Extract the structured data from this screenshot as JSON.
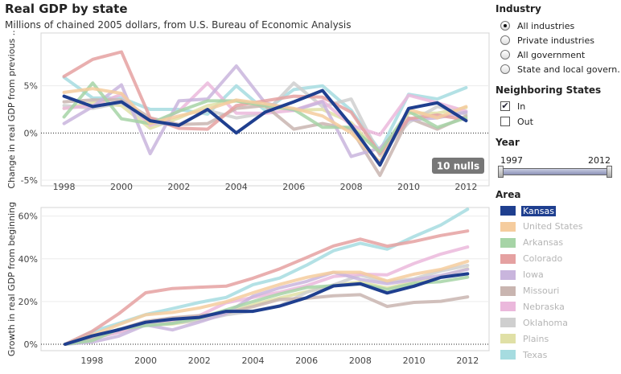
{
  "header": {
    "title": "Real GDP by state",
    "subtitle": "Millions of chained 2005 dollars, from U.S. Bureau of Economic Analysis"
  },
  "sidebar": {
    "industry": {
      "title": "Industry",
      "options": [
        "All industries",
        "Private industries",
        "All government",
        "State and local govern…"
      ],
      "selected": "All industries"
    },
    "neighbors": {
      "title": "Neighboring States",
      "options": [
        {
          "label": "In",
          "checked": true,
          "mark": "✔"
        },
        {
          "label": "Out",
          "checked": false,
          "mark": ""
        }
      ]
    },
    "year": {
      "title": "Year",
      "min_label": "1997",
      "max_label": "2012",
      "range": [
        1997,
        2012
      ]
    },
    "area": {
      "title": "Area",
      "selected": "Kansas",
      "items": [
        {
          "label": "Kansas",
          "color": "#1f3f8f"
        },
        {
          "label": "United States",
          "color": "#f5cc9e"
        },
        {
          "label": "Arkansas",
          "color": "#a6d4a6"
        },
        {
          "label": "Colorado",
          "color": "#e5a1a1"
        },
        {
          "label": "Iowa",
          "color": "#c9b5dd"
        },
        {
          "label": "Missouri",
          "color": "#c9b5b0"
        },
        {
          "label": "Nebraska",
          "color": "#ebb8dc"
        },
        {
          "label": "Oklahoma",
          "color": "#cfcfcf"
        },
        {
          "label": "Plains",
          "color": "#e0e0a6"
        },
        {
          "label": "Texas",
          "color": "#a6dce0"
        }
      ]
    }
  },
  "chart_data": [
    {
      "type": "line",
      "ylabel": "Change in real GDP from previous ..",
      "x": [
        1998,
        1999,
        2000,
        2001,
        2002,
        2003,
        2004,
        2005,
        2006,
        2007,
        2008,
        2009,
        2010,
        2011,
        2012
      ],
      "xticks": [
        "1998",
        "2000",
        "2002",
        "2004",
        "2006",
        "2008",
        "2010",
        "2012"
      ],
      "yticks": [
        {
          "v": 5,
          "label": "5%"
        },
        {
          "v": 0,
          "label": "0%"
        },
        {
          "v": -5,
          "label": "-5%"
        }
      ],
      "xlim": [
        1997.2,
        2012.8
      ],
      "ylim": [
        -5.6,
        10.6
      ],
      "annotation": "10 nulls",
      "series": [
        {
          "name": "Texas",
          "values": [
            5.9,
            3.7,
            3.7,
            2.5,
            2.5,
            2.0,
            5.0,
            2.4,
            4.6,
            5.0,
            2.4,
            -1.9,
            4.1,
            3.6,
            4.8
          ]
        },
        {
          "name": "Plains",
          "values": [
            2.6,
            3.2,
            2.9,
            0.5,
            1.6,
            2.9,
            3.4,
            2.8,
            2.4,
            2.5,
            1.1,
            -2.2,
            2.1,
            2.1,
            2.7
          ]
        },
        {
          "name": "Oklahoma",
          "values": [
            2.9,
            2.6,
            3.2,
            1.0,
            0.9,
            2.4,
            1.6,
            2.1,
            5.3,
            2.8,
            3.6,
            -2.4,
            1.1,
            2.8,
            2.0
          ]
        },
        {
          "name": "Nebraska",
          "values": [
            2.6,
            2.9,
            4.1,
            0.8,
            2.3,
            5.3,
            2.1,
            2.1,
            2.4,
            3.4,
            0.8,
            -0.2,
            4.0,
            3.2,
            2.3
          ]
        },
        {
          "name": "Missouri",
          "values": [
            3.3,
            3.5,
            3.5,
            1.6,
            0.9,
            1.0,
            2.6,
            2.9,
            0.4,
            1.0,
            0.4,
            -4.5,
            1.6,
            0.4,
            1.8
          ]
        },
        {
          "name": "Iowa",
          "values": [
            1.0,
            2.8,
            5.1,
            -2.2,
            3.4,
            3.6,
            7.1,
            3.2,
            2.4,
            3.3,
            -2.5,
            -1.6,
            1.4,
            1.6,
            2.2
          ]
        },
        {
          "name": "Colorado",
          "values": [
            6.0,
            7.8,
            8.6,
            1.6,
            0.5,
            0.4,
            2.9,
            3.4,
            3.9,
            3.8,
            2.2,
            -2.2,
            1.5,
            1.9,
            1.4
          ]
        },
        {
          "name": "Arkansas",
          "values": [
            1.7,
            5.3,
            1.5,
            1.0,
            2.3,
            3.4,
            3.4,
            2.9,
            2.5,
            0.6,
            0.6,
            -2.0,
            2.3,
            0.6,
            1.6
          ]
        },
        {
          "name": "United States",
          "values": [
            4.3,
            4.7,
            4.2,
            1.0,
            1.8,
            2.5,
            3.5,
            3.1,
            2.6,
            1.8,
            0.0,
            -3.1,
            2.5,
            1.6,
            2.8
          ]
        },
        {
          "name": "Kansas",
          "values": [
            3.9,
            2.8,
            3.3,
            1.3,
            0.8,
            2.5,
            0.0,
            2.2,
            3.3,
            4.5,
            0.8,
            -3.4,
            2.6,
            3.2,
            1.3
          ]
        }
      ]
    },
    {
      "type": "line",
      "ylabel": "Growth in real GDP from beginning",
      "x": [
        1997,
        1998,
        1999,
        2000,
        2001,
        2002,
        2003,
        2004,
        2005,
        2006,
        2007,
        2008,
        2009,
        2010,
        2011,
        2012
      ],
      "xticks": [
        "1998",
        "2000",
        "2002",
        "2004",
        "2006",
        "2008",
        "2010",
        "2012"
      ],
      "yticks": [
        {
          "v": 60,
          "label": "60%"
        },
        {
          "v": 40,
          "label": "40%"
        },
        {
          "v": 20,
          "label": "20%"
        },
        {
          "v": 0,
          "label": "0%"
        }
      ],
      "xlim": [
        1996.1,
        2012.8
      ],
      "ylim": [
        -3,
        64
      ],
      "series": [
        {
          "name": "Texas",
          "values": [
            0,
            5.9,
            9.8,
            13.9,
            16.7,
            19.6,
            21.9,
            27.9,
            31.0,
            37.0,
            43.8,
            47.3,
            44.5,
            50.4,
            55.8,
            63.2
          ]
        },
        {
          "name": "Plains",
          "values": [
            0,
            2.6,
            5.9,
            9.0,
            9.5,
            11.3,
            14.5,
            18.4,
            21.7,
            24.6,
            27.7,
            29.1,
            26.3,
            29.0,
            31.7,
            35.3
          ]
        },
        {
          "name": "Oklahoma",
          "values": [
            0,
            2.9,
            5.6,
            9.0,
            10.1,
            11.1,
            13.8,
            15.6,
            18.0,
            24.3,
            27.8,
            32.4,
            29.2,
            30.6,
            34.3,
            36.9
          ]
        },
        {
          "name": "Nebraska",
          "values": [
            0,
            2.6,
            5.6,
            10.0,
            10.8,
            13.4,
            19.4,
            21.9,
            24.4,
            27.4,
            31.7,
            32.8,
            32.5,
            37.8,
            42.2,
            45.5
          ]
        },
        {
          "name": "Missouri",
          "values": [
            0,
            3.3,
            6.9,
            10.7,
            12.4,
            13.4,
            14.6,
            17.6,
            21.0,
            21.5,
            22.7,
            23.2,
            17.7,
            19.6,
            20.1,
            22.2
          ]
        },
        {
          "name": "Iowa",
          "values": [
            0,
            1.0,
            3.8,
            9.1,
            6.7,
            10.4,
            14.4,
            22.5,
            26.4,
            29.4,
            33.7,
            30.4,
            28.3,
            30.1,
            32.2,
            35.1
          ]
        },
        {
          "name": "Colorado",
          "values": [
            0,
            6.0,
            14.3,
            24.1,
            26.1,
            26.7,
            27.2,
            30.9,
            35.3,
            40.6,
            46.0,
            49.2,
            45.9,
            48.1,
            50.9,
            53.0
          ]
        },
        {
          "name": "Arkansas",
          "values": [
            0,
            1.7,
            7.1,
            8.7,
            9.8,
            12.3,
            16.1,
            20.0,
            23.5,
            26.6,
            27.4,
            28.2,
            25.6,
            28.5,
            29.3,
            31.4
          ]
        },
        {
          "name": "United States",
          "values": [
            0,
            4.3,
            9.2,
            13.8,
            14.9,
            17.0,
            19.9,
            24.1,
            28.0,
            31.3,
            33.7,
            33.7,
            29.6,
            32.8,
            35.0,
            38.8
          ]
        },
        {
          "name": "Kansas",
          "values": [
            0,
            3.9,
            6.8,
            10.3,
            11.7,
            12.6,
            15.4,
            15.4,
            17.9,
            21.8,
            27.3,
            28.3,
            24.0,
            27.2,
            31.3,
            33.0
          ]
        }
      ]
    }
  ]
}
